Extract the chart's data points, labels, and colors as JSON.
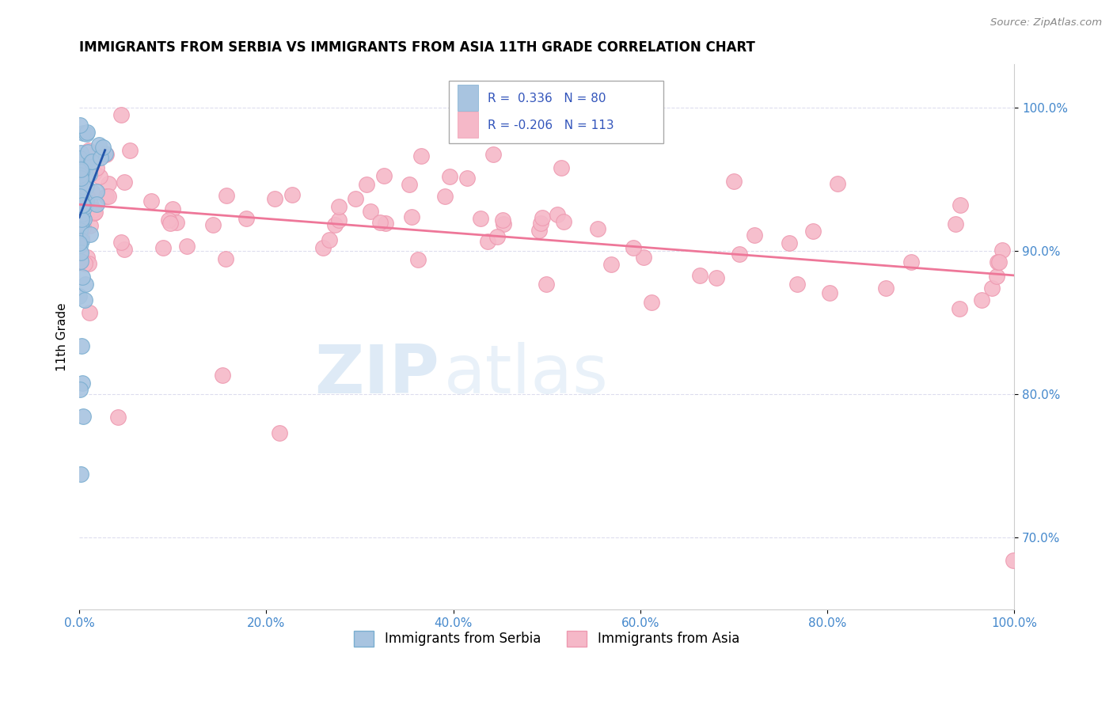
{
  "title": "IMMIGRANTS FROM SERBIA VS IMMIGRANTS FROM ASIA 11TH GRADE CORRELATION CHART",
  "source": "Source: ZipAtlas.com",
  "ylabel": "11th Grade",
  "xlim": [
    0,
    100
  ],
  "ylim": [
    65,
    103
  ],
  "yticks": [
    70.0,
    80.0,
    90.0,
    100.0
  ],
  "xticks": [
    0,
    20,
    40,
    60,
    80,
    100
  ],
  "xtick_labels": [
    "0.0%",
    "20.0%",
    "40.0%",
    "60.0%",
    "80.0%",
    "100.0%"
  ],
  "ytick_labels": [
    "70.0%",
    "80.0%",
    "90.0%",
    "100.0%"
  ],
  "serbia_color": "#a8c4e0",
  "serbia_edge_color": "#7aaed0",
  "asia_color": "#f5b8c8",
  "asia_edge_color": "#ee99b0",
  "serbia_R": 0.336,
  "serbia_N": 80,
  "asia_R": -0.206,
  "asia_N": 113,
  "serbia_line_color": "#2255aa",
  "asia_line_color": "#ee7799",
  "legend_color": "#3355bb",
  "legend_label1": "Immigrants from Serbia",
  "legend_label2": "Immigrants from Asia",
  "grid_color": "#ddddee",
  "tick_color": "#4488cc",
  "watermark_zip_color": "#c8ddf0",
  "watermark_atlas_color": "#c8ddf0"
}
